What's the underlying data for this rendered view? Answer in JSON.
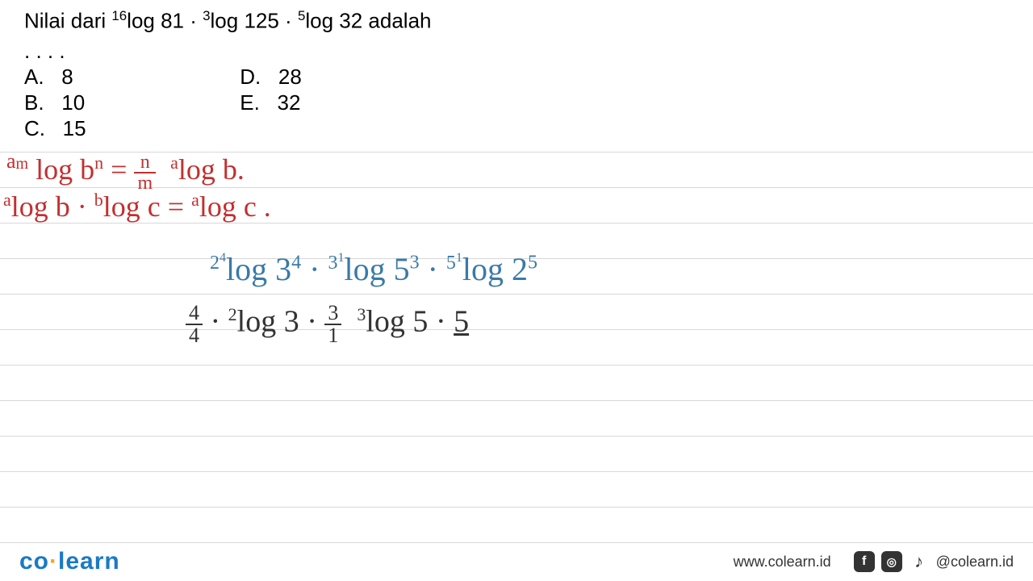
{
  "question": {
    "text_prefix": "Nilai dari ",
    "expr1_sup": "16",
    "expr1": "log 81 · ",
    "expr2_sup": "3",
    "expr2": "log 125 · ",
    "expr3_sup": "5",
    "expr3": "log 32 adalah",
    "dots": ". . . ."
  },
  "options": {
    "A": "8",
    "B": "10",
    "C": "15",
    "D": "28",
    "E": "32"
  },
  "handwriting": {
    "red_line1_lhs_sup1": "a",
    "red_line1_lhs_sup1b": "m",
    "red_line1_lhs": "log b",
    "red_line1_lhs_sup2": "n",
    "red_line1_eq": " = ",
    "red_line1_frac_num": "n",
    "red_line1_frac_den": "m",
    "red_line1_rhs_sup": "a",
    "red_line1_rhs": "log b.",
    "red_line2_p1_sup": "a",
    "red_line2_p1": "log b · ",
    "red_line2_p2_sup": "b",
    "red_line2_p2": "log c = ",
    "red_line2_p3_sup": "a",
    "red_line2_p3": "log c .",
    "blue_p1_sup": "2",
    "blue_p1_sup2": "4",
    "blue_p1": "log 3",
    "blue_p1_exp": "4",
    "blue_dot1": " · ",
    "blue_p2_sup": "3",
    "blue_p2_sup2": "1",
    "blue_p2": "log 5",
    "blue_p2_exp": "3",
    "blue_dot2": " · ",
    "blue_p3_sup": "5",
    "blue_p3_sup2": "1",
    "blue_p3": "log 2",
    "blue_p3_exp": "5",
    "black_f1_num": "4",
    "black_f1_den": "4",
    "black_dot1": " · ",
    "black_p1_sup": "2",
    "black_p1": "log 3",
    "black_dot2": " · ",
    "black_f2_num": "3",
    "black_f2_den": "1",
    "black_p2_sup": "3",
    "black_p2": "log 5",
    "black_dot3": " · ",
    "black_f3": "5"
  },
  "footer": {
    "logo_co": "co",
    "logo_dot": "·",
    "logo_learn": "learn",
    "url": "www.colearn.id",
    "handle": "@colearn.id"
  },
  "style": {
    "line_color": "#d8d8d8",
    "line_positions": [
      188,
      232,
      276,
      320,
      364,
      408,
      452,
      496,
      540,
      584,
      628,
      672
    ],
    "red": "#c23030",
    "blue": "#3a7aa8",
    "black": "#333333",
    "brand_blue": "#1a7ac5",
    "brand_orange": "#f5a623"
  }
}
